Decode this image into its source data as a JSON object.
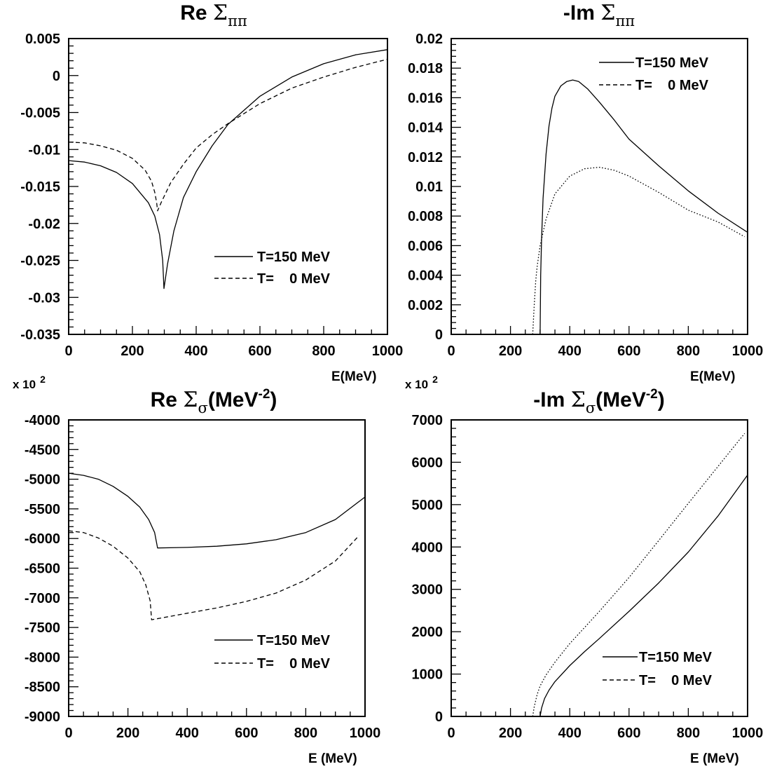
{
  "chart_data": [
    {
      "type": "line",
      "title": {
        "prefix": "Re ",
        "symbol": "Σ",
        "subscript": "ππ",
        "suffix": "",
        "superscript": "",
        "tail": ""
      },
      "xlabel": "E(MeV)",
      "ylabel": "",
      "scale_note": "",
      "xlim": [
        0,
        1000
      ],
      "ylim": [
        -0.035,
        0.005
      ],
      "xticks": [
        0,
        200,
        400,
        600,
        800,
        1000
      ],
      "ytick_labels": [
        "-0.035",
        "-0.03",
        "-0.025",
        "-0.02",
        "-0.015",
        "-0.01",
        "-0.005",
        "0",
        "0.005"
      ],
      "legend_placement": "lower-right",
      "legend": [
        "T=150 MeV",
        "T=    0 MeV"
      ],
      "series": [
        {
          "name": "T=150 MeV",
          "line_style": "solid",
          "x": [
            0,
            50,
            100,
            150,
            200,
            250,
            270,
            285,
            295,
            299,
            310,
            330,
            360,
            400,
            450,
            500,
            600,
            700,
            800,
            900,
            1000
          ],
          "y": [
            -0.0115,
            -0.0117,
            -0.0122,
            -0.0131,
            -0.0146,
            -0.0172,
            -0.019,
            -0.0215,
            -0.025,
            -0.0288,
            -0.0255,
            -0.021,
            -0.0165,
            -0.013,
            -0.0095,
            -0.0066,
            -0.0028,
            -0.0002,
            0.0016,
            0.0028,
            0.0035
          ]
        },
        {
          "name": "T=    0 MeV",
          "line_style": "dashed",
          "x": [
            0,
            50,
            100,
            150,
            200,
            240,
            260,
            270,
            276,
            279,
            290,
            320,
            360,
            400,
            450,
            500,
            600,
            700,
            800,
            900,
            1000
          ],
          "y": [
            -0.009,
            -0.0091,
            -0.0095,
            -0.0101,
            -0.0112,
            -0.0128,
            -0.0143,
            -0.0158,
            -0.0172,
            -0.0183,
            -0.0172,
            -0.0145,
            -0.012,
            -0.0098,
            -0.008,
            -0.0065,
            -0.0038,
            -0.0017,
            -0.0002,
            0.0011,
            0.0022
          ]
        }
      ]
    },
    {
      "type": "line",
      "title": {
        "prefix": "-Im ",
        "symbol": "Σ",
        "subscript": "ππ",
        "suffix": "",
        "superscript": "",
        "tail": ""
      },
      "xlabel": "E(MeV)",
      "ylabel": "",
      "scale_note": "",
      "xlim": [
        0,
        1000
      ],
      "ylim": [
        0,
        0.02
      ],
      "xticks": [
        0,
        200,
        400,
        600,
        800,
        1000
      ],
      "ytick_labels": [
        "0",
        "0.002",
        "0.004",
        "0.006",
        "0.008",
        "0.01",
        "0.012",
        "0.014",
        "0.016",
        "0.018",
        "0.02"
      ],
      "legend_placement": "top-right",
      "legend": [
        "T=150 MeV",
        "T=    0 MeV"
      ],
      "series": [
        {
          "name": "T=150 MeV",
          "line_style": "solid",
          "x": [
            300,
            302,
            305,
            310,
            320,
            330,
            340,
            350,
            370,
            390,
            410,
            430,
            460,
            500,
            550,
            600,
            700,
            800,
            900,
            1000
          ],
          "y": [
            0,
            0.004,
            0.0065,
            0.0092,
            0.0122,
            0.0141,
            0.0153,
            0.0161,
            0.0168,
            0.0171,
            0.0172,
            0.0171,
            0.0166,
            0.0157,
            0.0145,
            0.0132,
            0.0114,
            0.0097,
            0.0082,
            0.0069
          ]
        },
        {
          "name": "T=    0 MeV",
          "line_style": "dotted",
          "x": [
            275,
            280,
            285,
            290,
            300,
            320,
            350,
            400,
            450,
            500,
            550,
            600,
            700,
            800,
            900,
            990
          ],
          "y": [
            0,
            0.0019,
            0.0036,
            0.0046,
            0.006,
            0.0078,
            0.0095,
            0.0107,
            0.0112,
            0.0113,
            0.0111,
            0.0107,
            0.0096,
            0.0084,
            0.0076,
            0.0066
          ]
        }
      ]
    },
    {
      "type": "line",
      "title": {
        "prefix": "Re ",
        "symbol": "Σ",
        "subscript": "σ",
        "suffix": "(MeV",
        "superscript": "-2",
        "tail": ")"
      },
      "xlabel": "E (MeV)",
      "ylabel": "",
      "scale_note": "x 10",
      "scale_note_exp": "2",
      "xlim": [
        0,
        1000
      ],
      "ylim": [
        -9000,
        -4000
      ],
      "xticks": [
        0,
        200,
        400,
        600,
        800,
        1000
      ],
      "ytick_labels": [
        "-9000",
        "-8500",
        "-8000",
        "-7500",
        "-7000",
        "-6500",
        "-6000",
        "-5500",
        "-5000",
        "-4500",
        "-4000"
      ],
      "legend_placement": "lower-right",
      "legend": [
        "T=150 MeV",
        "T=    0 MeV"
      ],
      "series": [
        {
          "name": "T=150 MeV",
          "line_style": "solid",
          "x": [
            0,
            50,
            100,
            150,
            200,
            240,
            270,
            290,
            300,
            400,
            500,
            600,
            700,
            800,
            900,
            1000
          ],
          "y": [
            -4900,
            -4935,
            -5000,
            -5120,
            -5290,
            -5470,
            -5680,
            -5900,
            -6160,
            -6150,
            -6130,
            -6090,
            -6020,
            -5900,
            -5680,
            -5300
          ]
        },
        {
          "name": "T=    0 MeV",
          "line_style": "dashed",
          "x": [
            0,
            50,
            100,
            150,
            200,
            240,
            260,
            275,
            280,
            400,
            500,
            600,
            700,
            800,
            900,
            980
          ],
          "y": [
            -5870,
            -5900,
            -5990,
            -6130,
            -6330,
            -6560,
            -6780,
            -7050,
            -7370,
            -7260,
            -7170,
            -7060,
            -6920,
            -6700,
            -6380,
            -5950
          ]
        }
      ]
    },
    {
      "type": "line",
      "title": {
        "prefix": "-Im ",
        "symbol": "Σ",
        "subscript": "σ",
        "suffix": "(MeV",
        "superscript": "-2",
        "tail": ")"
      },
      "xlabel": "E (MeV)",
      "ylabel": "",
      "scale_note": "x 10",
      "scale_note_exp": "2",
      "xlim": [
        0,
        1000
      ],
      "ylim": [
        0,
        7000
      ],
      "xticks": [
        0,
        200,
        400,
        600,
        800,
        1000
      ],
      "ytick_labels": [
        "0",
        "1000",
        "2000",
        "3000",
        "4000",
        "5000",
        "6000",
        "7000"
      ],
      "legend_placement": "lower-right",
      "legend": [
        "T=150 MeV",
        "T=    0 MeV"
      ],
      "series": [
        {
          "name": "T=150 MeV",
          "line_style": "solid",
          "x": [
            300,
            305,
            315,
            330,
            350,
            400,
            450,
            500,
            600,
            700,
            800,
            900,
            1000
          ],
          "y": [
            0,
            200,
            420,
            620,
            820,
            1200,
            1530,
            1840,
            2480,
            3150,
            3880,
            4730,
            5700
          ]
        },
        {
          "name": "T=    0 MeV",
          "line_style": "dotted",
          "x": [
            275,
            280,
            290,
            300,
            320,
            350,
            400,
            450,
            500,
            600,
            700,
            800,
            900,
            990
          ],
          "y": [
            0,
            220,
            520,
            720,
            980,
            1280,
            1720,
            2100,
            2480,
            3280,
            4150,
            5030,
            5900,
            6680
          ]
        }
      ]
    }
  ]
}
